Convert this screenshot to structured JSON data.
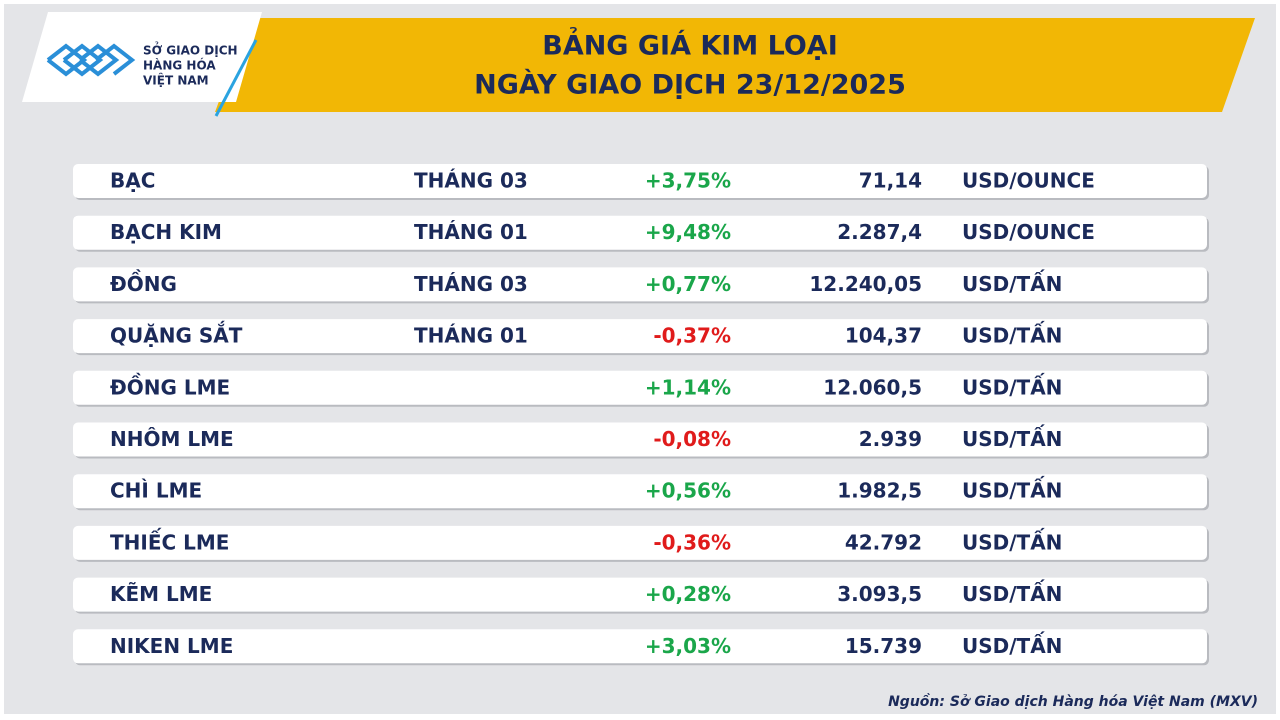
{
  "header": {
    "logo": [
      "SỞ GIAO DỊCH",
      "HÀNG HÓA",
      "VIỆT NAM"
    ],
    "title": [
      "BẢNG GIÁ KIM LOẠI",
      "NGÀY GIAO DỊCH 23/12/2025"
    ]
  },
  "table": {
    "rows": [
      {
        "name": "BẠC",
        "month": "THÁNG 03",
        "change": "+3,75%",
        "price": "71,14",
        "unit": "USD/OUNCE"
      },
      {
        "name": "BẠCH KIM",
        "month": "THÁNG 01",
        "change": "+9,48%",
        "price": "2.287,4",
        "unit": "USD/OUNCE"
      },
      {
        "name": "ĐỒNG",
        "month": "THÁNG 03",
        "change": "+0,77%",
        "price": "12.240,05",
        "unit": "USD/TẤN"
      },
      {
        "name": "QUẶNG SẮT",
        "month": "THÁNG 01",
        "change": "-0,37%",
        "price": "104,37",
        "unit": "USD/TẤN"
      },
      {
        "name": "ĐỒNG LME",
        "change": "+1,14%",
        "price": "12.060,5",
        "unit": "USD/TẤN"
      },
      {
        "name": "NHÔM LME",
        "change": "-0,08%",
        "price": "2.939",
        "unit": "USD/TẤN"
      },
      {
        "name": "CHÌ LME",
        "change": "+0,56%",
        "price": "1.982,5",
        "unit": "USD/TẤN"
      },
      {
        "name": "THIẾC LME",
        "change": "-0,36%",
        "price": "42.792",
        "unit": "USD/TẤN"
      },
      {
        "name": "KẼM LME",
        "change": "+0,28%",
        "price": "3.093,5",
        "unit": "USD/TẤN"
      },
      {
        "name": "NIKEN LME",
        "change": "+3,03%",
        "price": "15.739",
        "unit": "USD/TẤN"
      }
    ]
  },
  "source": "Nguồn: Sở Giao dịch Hàng hóa Việt Nam (MXV)"
}
